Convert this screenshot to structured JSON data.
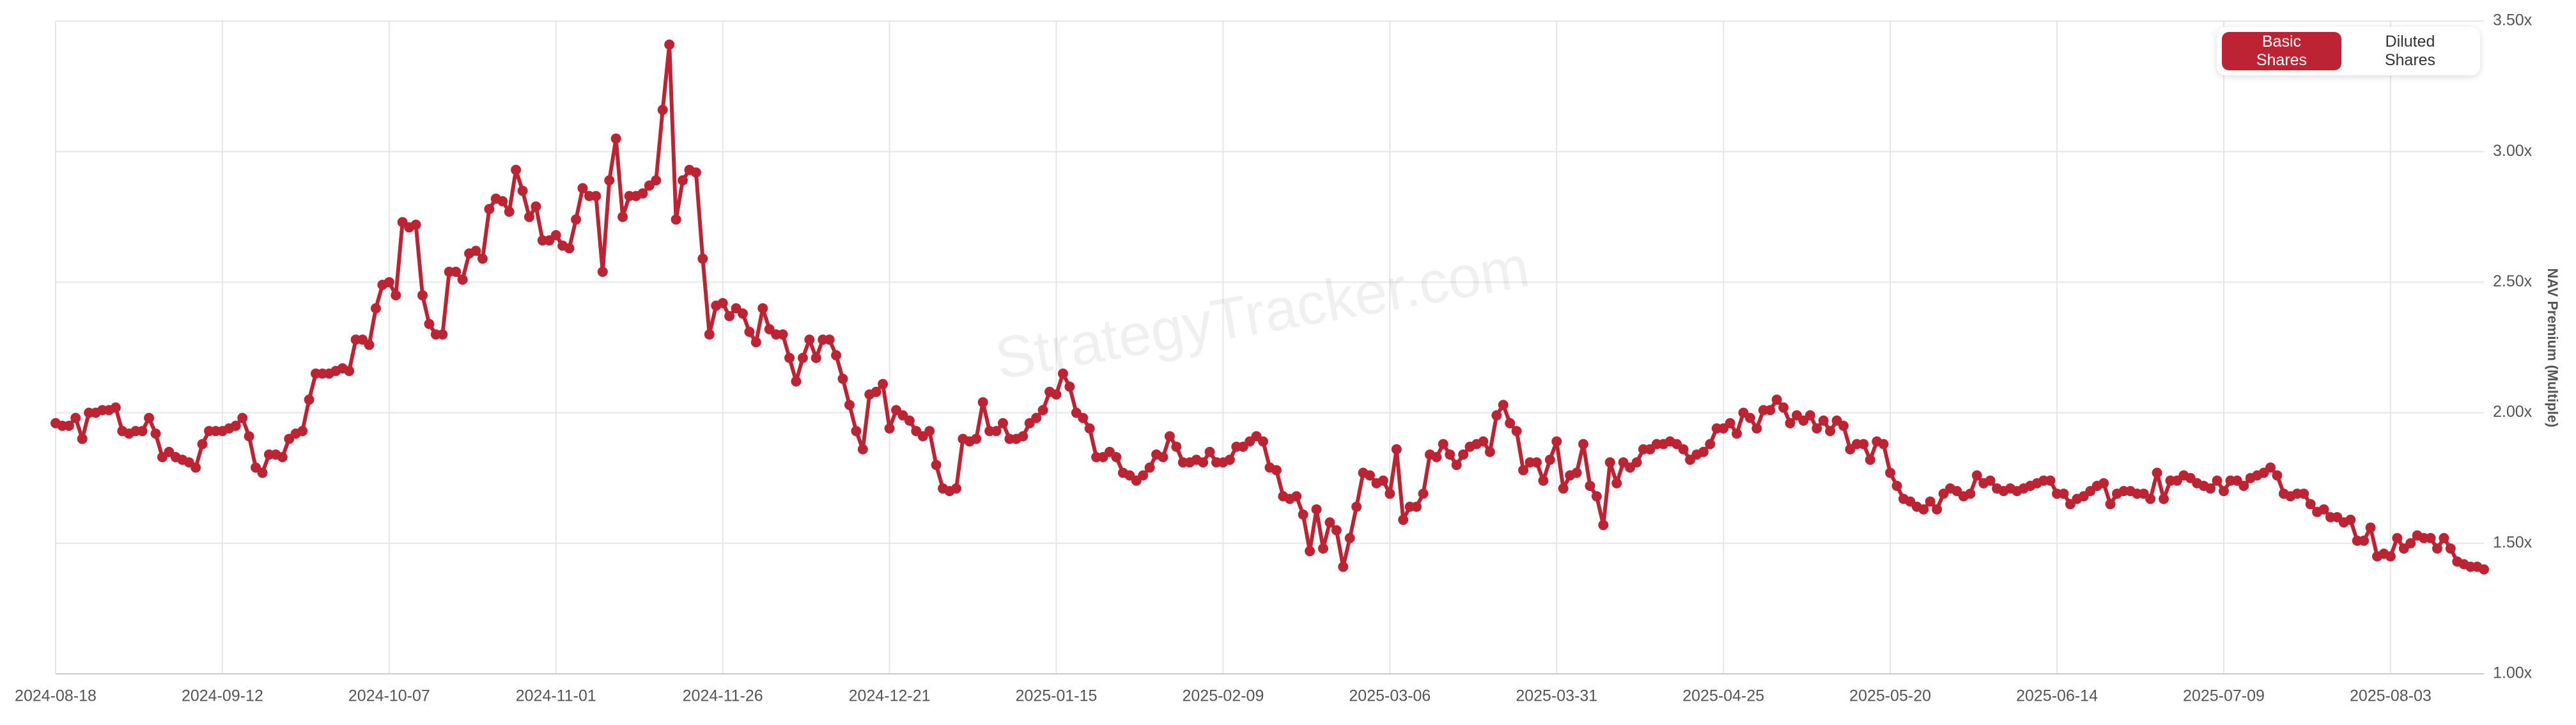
{
  "chart_data": {
    "type": "line",
    "y_label": "NAV Premium (Multiple)",
    "watermark": "StrategyTracker.com",
    "toggle_options": [
      "Basic Shares",
      "Diluted Shares"
    ],
    "active_option": 0,
    "grid": true,
    "xlim": [
      "2024-08-18",
      "2025-08-17"
    ],
    "xticks": [
      "2024-08-18",
      "2024-09-12",
      "2024-10-07",
      "2024-11-01",
      "2024-11-26",
      "2024-12-21",
      "2025-01-15",
      "2025-02-09",
      "2025-03-06",
      "2025-03-31",
      "2025-04-25",
      "2025-05-20",
      "2025-06-14",
      "2025-07-09",
      "2025-08-03"
    ],
    "ylim": [
      1,
      3.5
    ],
    "yticks": [
      {
        "value": 1,
        "label": "1.00x"
      },
      {
        "value": 1.5,
        "label": "1.50x"
      },
      {
        "value": 2,
        "label": "2.00x"
      },
      {
        "value": 2.5,
        "label": "2.50x"
      },
      {
        "value": 3,
        "label": "3.00x"
      },
      {
        "value": 3.5,
        "label": "3.50x"
      }
    ],
    "x": [
      "2024-08-18",
      "2024-08-19",
      "2024-08-20",
      "2024-08-21",
      "2024-08-22",
      "2024-08-23",
      "2024-08-24",
      "2024-08-25",
      "2024-08-26",
      "2024-08-27",
      "2024-08-28",
      "2024-08-29",
      "2024-08-30",
      "2024-08-31",
      "2024-09-01",
      "2024-09-02",
      "2024-09-03",
      "2024-09-04",
      "2024-09-05",
      "2024-09-06",
      "2024-09-07",
      "2024-09-08",
      "2024-09-09",
      "2024-09-10",
      "2024-09-11",
      "2024-09-12",
      "2024-09-13",
      "2024-09-14",
      "2024-09-15",
      "2024-09-16",
      "2024-09-17",
      "2024-09-18",
      "2024-09-19",
      "2024-09-20",
      "2024-09-21",
      "2024-09-22",
      "2024-09-23",
      "2024-09-24",
      "2024-09-25",
      "2024-09-26",
      "2024-09-27",
      "2024-09-28",
      "2024-09-29",
      "2024-09-30",
      "2024-10-01",
      "2024-10-02",
      "2024-10-03",
      "2024-10-04",
      "2024-10-05",
      "2024-10-06",
      "2024-10-07",
      "2024-10-08",
      "2024-10-09",
      "2024-10-10",
      "2024-10-11",
      "2024-10-12",
      "2024-10-13",
      "2024-10-14",
      "2024-10-15",
      "2024-10-16",
      "2024-10-17",
      "2024-10-18",
      "2024-10-19",
      "2024-10-20",
      "2024-10-21",
      "2024-10-22",
      "2024-10-23",
      "2024-10-24",
      "2024-10-25",
      "2024-10-26",
      "2024-10-27",
      "2024-10-28",
      "2024-10-29",
      "2024-10-30",
      "2024-10-31",
      "2024-11-01",
      "2024-11-02",
      "2024-11-03",
      "2024-11-04",
      "2024-11-05",
      "2024-11-06",
      "2024-11-07",
      "2024-11-08",
      "2024-11-09",
      "2024-11-10",
      "2024-11-11",
      "2024-11-12",
      "2024-11-13",
      "2024-11-14",
      "2024-11-15",
      "2024-11-16",
      "2024-11-17",
      "2024-11-18",
      "2024-11-19",
      "2024-11-20",
      "2024-11-21",
      "2024-11-22",
      "2024-11-23",
      "2024-11-24",
      "2024-11-25",
      "2024-11-26",
      "2024-11-27",
      "2024-11-28",
      "2024-11-29",
      "2024-11-30",
      "2024-12-01",
      "2024-12-02",
      "2024-12-03",
      "2024-12-04",
      "2024-12-05",
      "2024-12-06",
      "2024-12-07",
      "2024-12-08",
      "2024-12-09",
      "2024-12-10",
      "2024-12-11",
      "2024-12-12",
      "2024-12-13",
      "2024-12-14",
      "2024-12-15",
      "2024-12-16",
      "2024-12-17",
      "2024-12-18",
      "2024-12-19",
      "2024-12-20",
      "2024-12-21",
      "2024-12-22",
      "2024-12-23",
      "2024-12-24",
      "2024-12-25",
      "2024-12-26",
      "2024-12-27",
      "2024-12-28",
      "2024-12-29",
      "2024-12-30",
      "2024-12-31",
      "2025-01-01",
      "2025-01-02",
      "2025-01-03",
      "2025-01-04",
      "2025-01-05",
      "2025-01-06",
      "2025-01-07",
      "2025-01-08",
      "2025-01-09",
      "2025-01-10",
      "2025-01-11",
      "2025-01-12",
      "2025-01-13",
      "2025-01-14",
      "2025-01-15",
      "2025-01-16",
      "2025-01-17",
      "2025-01-18",
      "2025-01-19",
      "2025-01-20",
      "2025-01-21",
      "2025-01-22",
      "2025-01-23",
      "2025-01-24",
      "2025-01-25",
      "2025-01-26",
      "2025-01-27",
      "2025-01-28",
      "2025-01-29",
      "2025-01-30",
      "2025-01-31",
      "2025-02-01",
      "2025-02-02",
      "2025-02-03",
      "2025-02-04",
      "2025-02-05",
      "2025-02-06",
      "2025-02-07",
      "2025-02-08",
      "2025-02-09",
      "2025-02-10",
      "2025-02-11",
      "2025-02-12",
      "2025-02-13",
      "2025-02-14",
      "2025-02-15",
      "2025-02-16",
      "2025-02-17",
      "2025-02-18",
      "2025-02-19",
      "2025-02-20",
      "2025-02-21",
      "2025-02-22",
      "2025-02-23",
      "2025-02-24",
      "2025-02-25",
      "2025-02-26",
      "2025-02-27",
      "2025-02-28",
      "2025-03-01",
      "2025-03-02",
      "2025-03-03",
      "2025-03-04",
      "2025-03-05",
      "2025-03-06",
      "2025-03-07",
      "2025-03-08",
      "2025-03-09",
      "2025-03-10",
      "2025-03-11",
      "2025-03-12",
      "2025-03-13",
      "2025-03-14",
      "2025-03-15",
      "2025-03-16",
      "2025-03-17",
      "2025-03-18",
      "2025-03-19",
      "2025-03-20",
      "2025-03-21",
      "2025-03-22",
      "2025-03-23",
      "2025-03-24",
      "2025-03-25",
      "2025-03-26",
      "2025-03-27",
      "2025-03-28",
      "2025-03-29",
      "2025-03-30",
      "2025-03-31",
      "2025-04-01",
      "2025-04-02",
      "2025-04-03",
      "2025-04-04",
      "2025-04-05",
      "2025-04-06",
      "2025-04-07",
      "2025-04-08",
      "2025-04-09",
      "2025-04-10",
      "2025-04-11",
      "2025-04-12",
      "2025-04-13",
      "2025-04-14",
      "2025-04-15",
      "2025-04-16",
      "2025-04-17",
      "2025-04-18",
      "2025-04-19",
      "2025-04-20",
      "2025-04-21",
      "2025-04-22",
      "2025-04-23",
      "2025-04-24",
      "2025-04-25",
      "2025-04-26",
      "2025-04-27",
      "2025-04-28",
      "2025-04-29",
      "2025-04-30",
      "2025-05-01",
      "2025-05-02",
      "2025-05-03",
      "2025-05-04",
      "2025-05-05",
      "2025-05-06",
      "2025-05-07",
      "2025-05-08",
      "2025-05-09",
      "2025-05-10",
      "2025-05-11",
      "2025-05-12",
      "2025-05-13",
      "2025-05-14",
      "2025-05-15",
      "2025-05-16",
      "2025-05-17",
      "2025-05-18",
      "2025-05-19",
      "2025-05-20",
      "2025-05-21",
      "2025-05-22",
      "2025-05-23",
      "2025-05-24",
      "2025-05-25",
      "2025-05-26",
      "2025-05-27",
      "2025-05-28",
      "2025-05-29",
      "2025-05-30",
      "2025-05-31",
      "2025-06-01",
      "2025-06-02",
      "2025-06-03",
      "2025-06-04",
      "2025-06-05",
      "2025-06-06",
      "2025-06-07",
      "2025-06-08",
      "2025-06-09",
      "2025-06-10",
      "2025-06-11",
      "2025-06-12",
      "2025-06-13",
      "2025-06-14",
      "2025-06-15",
      "2025-06-16",
      "2025-06-17",
      "2025-06-18",
      "2025-06-19",
      "2025-06-20",
      "2025-06-21",
      "2025-06-22",
      "2025-06-23",
      "2025-06-24",
      "2025-06-25",
      "2025-06-26",
      "2025-06-27",
      "2025-06-28",
      "2025-06-29",
      "2025-06-30",
      "2025-07-01",
      "2025-07-02",
      "2025-07-03",
      "2025-07-04",
      "2025-07-05",
      "2025-07-06",
      "2025-07-07",
      "2025-07-08",
      "2025-07-09",
      "2025-07-10",
      "2025-07-11",
      "2025-07-12",
      "2025-07-13",
      "2025-07-14",
      "2025-07-15",
      "2025-07-16",
      "2025-07-17",
      "2025-07-18",
      "2025-07-19",
      "2025-07-20",
      "2025-07-21",
      "2025-07-22",
      "2025-07-23",
      "2025-07-24",
      "2025-07-25",
      "2025-07-26",
      "2025-07-27",
      "2025-07-28",
      "2025-07-29",
      "2025-07-30",
      "2025-07-31",
      "2025-08-01",
      "2025-08-02",
      "2025-08-03",
      "2025-08-04",
      "2025-08-05",
      "2025-08-06",
      "2025-08-07",
      "2025-08-08",
      "2025-08-09",
      "2025-08-10",
      "2025-08-11",
      "2025-08-12",
      "2025-08-13",
      "2025-08-14",
      "2025-08-15",
      "2025-08-16",
      "2025-08-17"
    ],
    "series": [
      {
        "name": "Basic Shares",
        "color": "#bd2433",
        "values": [
          1.96,
          1.95,
          1.95,
          1.98,
          1.9,
          2.0,
          2.0,
          2.01,
          2.01,
          2.02,
          1.93,
          1.92,
          1.93,
          1.93,
          1.98,
          1.92,
          1.83,
          1.85,
          1.83,
          1.82,
          1.81,
          1.79,
          1.88,
          1.93,
          1.93,
          1.93,
          1.94,
          1.95,
          1.98,
          1.91,
          1.79,
          1.77,
          1.84,
          1.84,
          1.83,
          1.9,
          1.92,
          1.93,
          2.05,
          2.15,
          2.15,
          2.15,
          2.16,
          2.17,
          2.16,
          2.28,
          2.28,
          2.26,
          2.4,
          2.49,
          2.5,
          2.45,
          2.73,
          2.71,
          2.72,
          2.45,
          2.34,
          2.3,
          2.3,
          2.54,
          2.54,
          2.51,
          2.61,
          2.62,
          2.59,
          2.78,
          2.82,
          2.81,
          2.77,
          2.93,
          2.85,
          2.75,
          2.79,
          2.66,
          2.66,
          2.68,
          2.64,
          2.63,
          2.74,
          2.86,
          2.83,
          2.83,
          2.54,
          2.89,
          3.05,
          2.75,
          2.83,
          2.83,
          2.84,
          2.87,
          2.89,
          3.16,
          3.41,
          2.74,
          2.89,
          2.93,
          2.92,
          2.59,
          2.3,
          2.41,
          2.42,
          2.37,
          2.4,
          2.38,
          2.31,
          2.27,
          2.4,
          2.32,
          2.3,
          2.3,
          2.21,
          2.12,
          2.21,
          2.28,
          2.21,
          2.28,
          2.28,
          2.22,
          2.13,
          2.03,
          1.93,
          1.86,
          2.07,
          2.08,
          2.11,
          1.94,
          2.01,
          1.99,
          1.97,
          1.93,
          1.91,
          1.93,
          1.8,
          1.71,
          1.7,
          1.71,
          1.9,
          1.89,
          1.9,
          2.04,
          1.93,
          1.93,
          1.96,
          1.9,
          1.9,
          1.91,
          1.96,
          1.98,
          2.01,
          2.08,
          2.07,
          2.15,
          2.1,
          2.0,
          1.98,
          1.94,
          1.83,
          1.83,
          1.85,
          1.83,
          1.77,
          1.76,
          1.74,
          1.76,
          1.79,
          1.84,
          1.83,
          1.91,
          1.87,
          1.81,
          1.81,
          1.82,
          1.81,
          1.85,
          1.81,
          1.81,
          1.82,
          1.87,
          1.87,
          1.89,
          1.91,
          1.89,
          1.79,
          1.78,
          1.68,
          1.67,
          1.68,
          1.61,
          1.47,
          1.63,
          1.48,
          1.58,
          1.55,
          1.41,
          1.52,
          1.64,
          1.77,
          1.76,
          1.73,
          1.74,
          1.69,
          1.86,
          1.59,
          1.64,
          1.64,
          1.69,
          1.84,
          1.83,
          1.88,
          1.84,
          1.8,
          1.84,
          1.87,
          1.88,
          1.89,
          1.85,
          1.99,
          2.03,
          1.96,
          1.93,
          1.78,
          1.81,
          1.81,
          1.74,
          1.82,
          1.89,
          1.71,
          1.76,
          1.77,
          1.88,
          1.72,
          1.68,
          1.57,
          1.81,
          1.73,
          1.81,
          1.79,
          1.81,
          1.86,
          1.86,
          1.88,
          1.88,
          1.89,
          1.88,
          1.86,
          1.82,
          1.84,
          1.85,
          1.88,
          1.94,
          1.94,
          1.96,
          1.92,
          2.0,
          1.98,
          1.94,
          2.01,
          2.01,
          2.05,
          2.02,
          1.96,
          1.99,
          1.97,
          1.99,
          1.94,
          1.97,
          1.93,
          1.97,
          1.95,
          1.86,
          1.88,
          1.88,
          1.82,
          1.89,
          1.88,
          1.77,
          1.72,
          1.67,
          1.66,
          1.64,
          1.63,
          1.66,
          1.63,
          1.69,
          1.71,
          1.7,
          1.68,
          1.69,
          1.76,
          1.73,
          1.74,
          1.71,
          1.7,
          1.71,
          1.7,
          1.71,
          1.72,
          1.73,
          1.74,
          1.74,
          1.69,
          1.69,
          1.65,
          1.67,
          1.68,
          1.7,
          1.72,
          1.73,
          1.65,
          1.69,
          1.7,
          1.7,
          1.69,
          1.69,
          1.67,
          1.77,
          1.67,
          1.74,
          1.74,
          1.76,
          1.75,
          1.73,
          1.72,
          1.71,
          1.74,
          1.7,
          1.74,
          1.74,
          1.72,
          1.75,
          1.76,
          1.77,
          1.79,
          1.76,
          1.69,
          1.68,
          1.69,
          1.69,
          1.65,
          1.62,
          1.63,
          1.6,
          1.6,
          1.58,
          1.59,
          1.51,
          1.51,
          1.56,
          1.45,
          1.46,
          1.45,
          1.52,
          1.48,
          1.5,
          1.53,
          1.52,
          1.52,
          1.48,
          1.52,
          1.48,
          1.43,
          1.42,
          1.41,
          1.41,
          1.4
        ]
      }
    ]
  }
}
